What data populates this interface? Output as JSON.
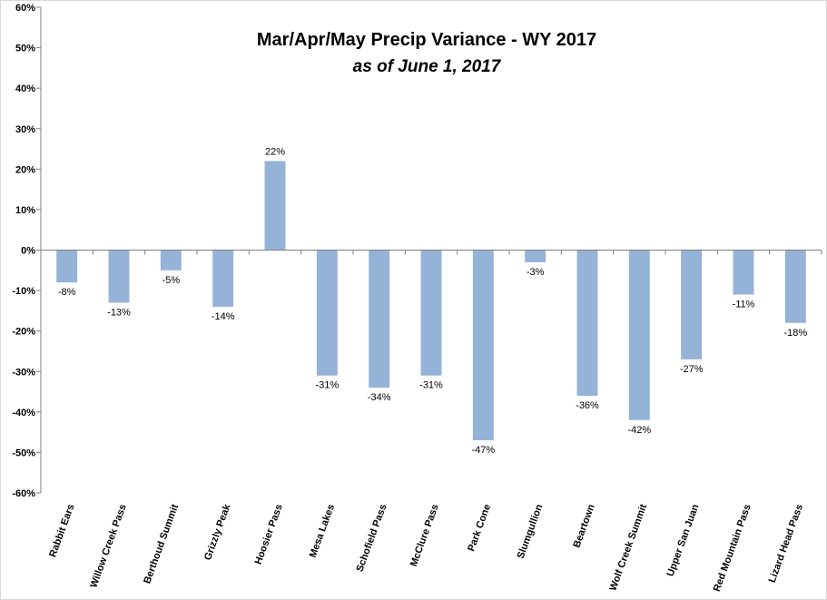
{
  "chart_data": {
    "type": "bar",
    "title": "Mar/Apr/May Precip Variance - WY 2017",
    "subtitle": "as of June 1, 2017",
    "xlabel": "",
    "ylabel": "",
    "ylim": [
      -60,
      60
    ],
    "ytick_step": 10,
    "ytick_labels": [
      "60%",
      "50%",
      "40%",
      "30%",
      "20%",
      "10%",
      "0%",
      "-10%",
      "-20%",
      "-30%",
      "-40%",
      "-50%",
      "-60%"
    ],
    "grid": false,
    "legend": "none",
    "bar_color": "#95b3d7",
    "categories": [
      "Rabbit Ears",
      "Willow Creek Pass",
      "Berthoud Summit",
      "Grizzly Peak",
      "Hoosier Pass",
      "Mesa Lakes",
      "Schofield Pass",
      "McClure Pass",
      "Park Cone",
      "Slumgullion",
      "Beartown",
      "Wolf Creek Summit",
      "Upper San Juan",
      "Red Mountain Pass",
      "Lizard Head Pass"
    ],
    "values": [
      -8,
      -13,
      -5,
      -14,
      22,
      -31,
      -34,
      -31,
      -47,
      -3,
      -36,
      -42,
      -27,
      -11,
      -18
    ],
    "data_labels": [
      "-8%",
      "-13%",
      "-5%",
      "-14%",
      "22%",
      "-31%",
      "-34%",
      "-31%",
      "-47%",
      "-3%",
      "-36%",
      "-42%",
      "-27%",
      "-11%",
      "-18%"
    ]
  }
}
